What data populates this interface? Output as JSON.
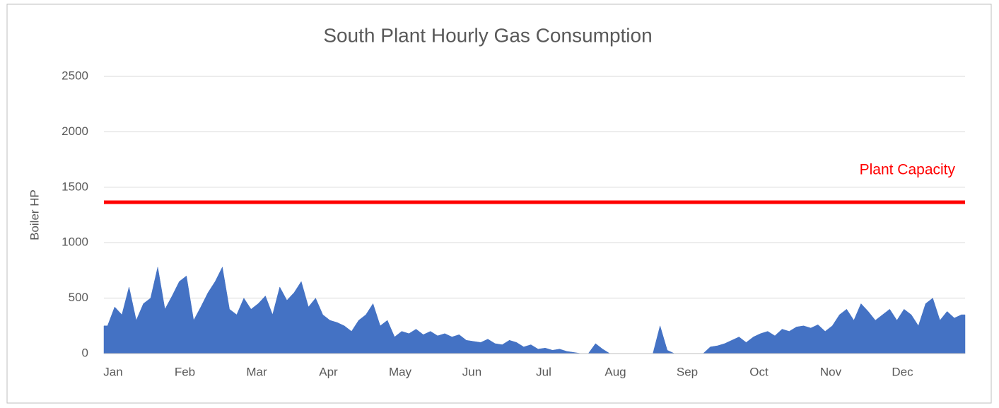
{
  "chart_data": {
    "type": "area",
    "title": "South Plant Hourly Gas Consumption",
    "ylabel": "Boiler HP",
    "categories": [
      "Jan",
      "Feb",
      "Mar",
      "Apr",
      "May",
      "Jun",
      "Jul",
      "Aug",
      "Sep",
      "Oct",
      "Nov",
      "Dec"
    ],
    "series": [
      {
        "name": "Hourly Gas Consumption",
        "color": "#4472c4",
        "values": [
          [
            250,
            420,
            350,
            600,
            300,
            450,
            500,
            780,
            400,
            520
          ],
          [
            650,
            700,
            300,
            420,
            550,
            650,
            780,
            400,
            350,
            500
          ],
          [
            400,
            450,
            520,
            350,
            600,
            480,
            550,
            650,
            420,
            500
          ],
          [
            350,
            300,
            280,
            250,
            200,
            300,
            350,
            450,
            250,
            300
          ],
          [
            150,
            200,
            180,
            220,
            170,
            200,
            160,
            180,
            150,
            170
          ],
          [
            120,
            110,
            100,
            130,
            90,
            80,
            120,
            100,
            60,
            80
          ],
          [
            40,
            50,
            30,
            40,
            20,
            10,
            0,
            0,
            90,
            40
          ],
          [
            0,
            0,
            0,
            0,
            0,
            0,
            0,
            250,
            30,
            0
          ],
          [
            0,
            0,
            0,
            0,
            60,
            70,
            90,
            120,
            150,
            100
          ],
          [
            150,
            180,
            200,
            160,
            220,
            200,
            240,
            250,
            230,
            260
          ],
          [
            200,
            250,
            350,
            400,
            300,
            450,
            380,
            300,
            350,
            400
          ],
          [
            300,
            400,
            350,
            250,
            450,
            500,
            300,
            380,
            320,
            350
          ]
        ]
      }
    ],
    "capacity": {
      "label": "Plant Capacity",
      "value": 1365,
      "color": "#ff0000"
    },
    "ylim": [
      0,
      2500
    ],
    "yticks": [
      0,
      500,
      1000,
      1500,
      2000,
      2500
    ],
    "grid": true
  }
}
